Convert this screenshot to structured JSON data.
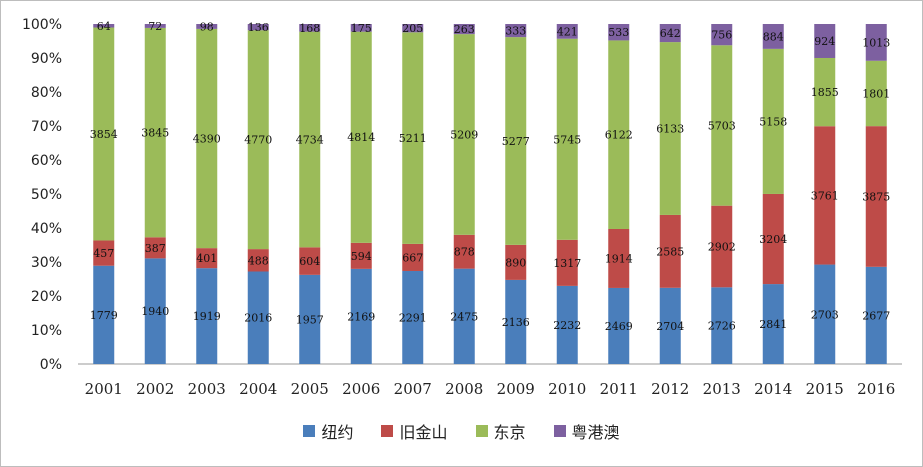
{
  "chart_data": {
    "type": "bar",
    "stacked": "percent",
    "categories": [
      "2001",
      "2002",
      "2003",
      "2004",
      "2005",
      "2006",
      "2007",
      "2008",
      "2009",
      "2010",
      "2011",
      "2012",
      "2013",
      "2014",
      "2015",
      "2016"
    ],
    "series": [
      {
        "name": "纽约",
        "color": "#4a7ebb",
        "values": [
          1779,
          1940,
          1919,
          2016,
          1957,
          2169,
          2291,
          2475,
          2136,
          2232,
          2469,
          2704,
          2726,
          2841,
          2703,
          2677
        ]
      },
      {
        "name": "旧金山",
        "color": "#be4b48",
        "values": [
          457,
          387,
          401,
          488,
          604,
          594,
          667,
          878,
          890,
          1317,
          1914,
          2585,
          2902,
          3204,
          3761,
          3875
        ]
      },
      {
        "name": "东京",
        "color": "#9bbb59",
        "values": [
          3854,
          3845,
          4390,
          4770,
          4734,
          4814,
          5211,
          5209,
          5277,
          5745,
          6122,
          6133,
          5703,
          5158,
          1855,
          1801
        ]
      },
      {
        "name": "粤港澳",
        "color": "#7d60a0",
        "values": [
          64,
          72,
          98,
          136,
          168,
          175,
          205,
          263,
          333,
          421,
          533,
          642,
          756,
          884,
          924,
          1013
        ]
      }
    ],
    "ylim": [
      0,
      100
    ],
    "yticks": [
      "0%",
      "10%",
      "20%",
      "30%",
      "40%",
      "50%",
      "60%",
      "70%",
      "80%",
      "90%",
      "100%"
    ],
    "grid": false,
    "legend": "bottom"
  }
}
